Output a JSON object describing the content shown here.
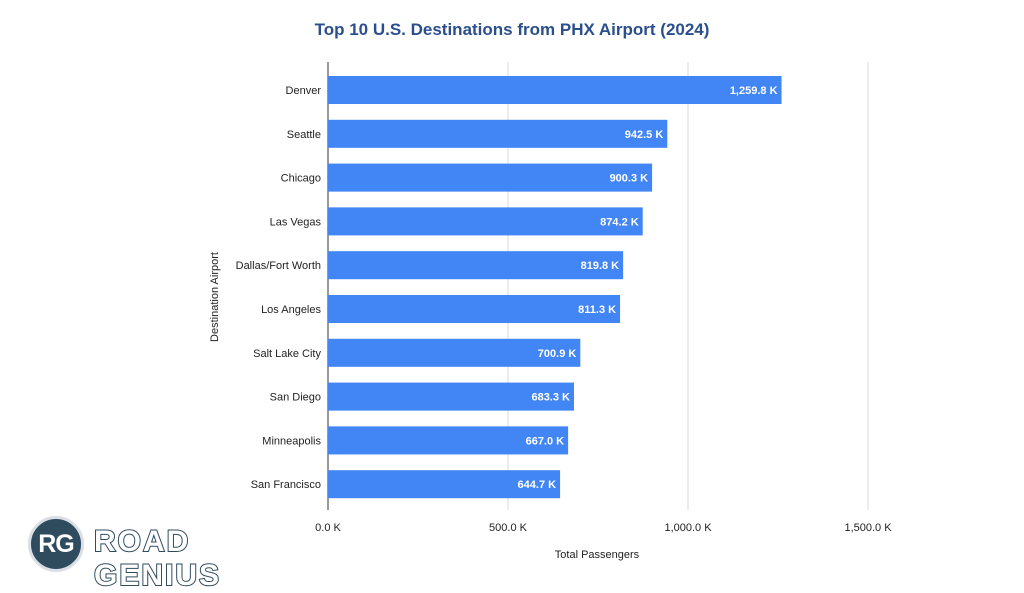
{
  "chart_data": {
    "type": "bar",
    "orientation": "horizontal",
    "title": "Top 10 U.S. Destinations from PHX Airport (2024)",
    "xlabel": "Total Passengers",
    "ylabel": "Destination Airport",
    "categories": [
      "Denver",
      "Seattle",
      "Chicago",
      "Las Vegas",
      "Dallas/Fort Worth",
      "Los Angeles",
      "Salt Lake City",
      "San Diego",
      "Minneapolis",
      "San Francisco"
    ],
    "values": [
      1259.8,
      942.5,
      900.3,
      874.2,
      819.8,
      811.3,
      700.9,
      683.3,
      667.0,
      644.7
    ],
    "value_labels": [
      "1,259.8 K",
      "942.5 K",
      "900.3 K",
      "874.2 K",
      "819.8 K",
      "811.3 K",
      "700.9 K",
      "683.3 K",
      "667.0 K",
      "644.7 K"
    ],
    "xlim": [
      0,
      1750
    ],
    "xticks": [
      0,
      500,
      1000,
      1500
    ],
    "xtick_labels": [
      "0.0 K",
      "500.0 K",
      "1,000.0 K",
      "1,500.0 K"
    ],
    "unit": "K",
    "grid": "vertical",
    "legend": "none",
    "colors": {
      "bar": "#4285f4",
      "title": "#2a4f8c",
      "grid": "#d9d9d9",
      "value_label": "#ffffff"
    }
  },
  "logo": {
    "badge": "RG",
    "text": "ROAD GENIUS"
  }
}
